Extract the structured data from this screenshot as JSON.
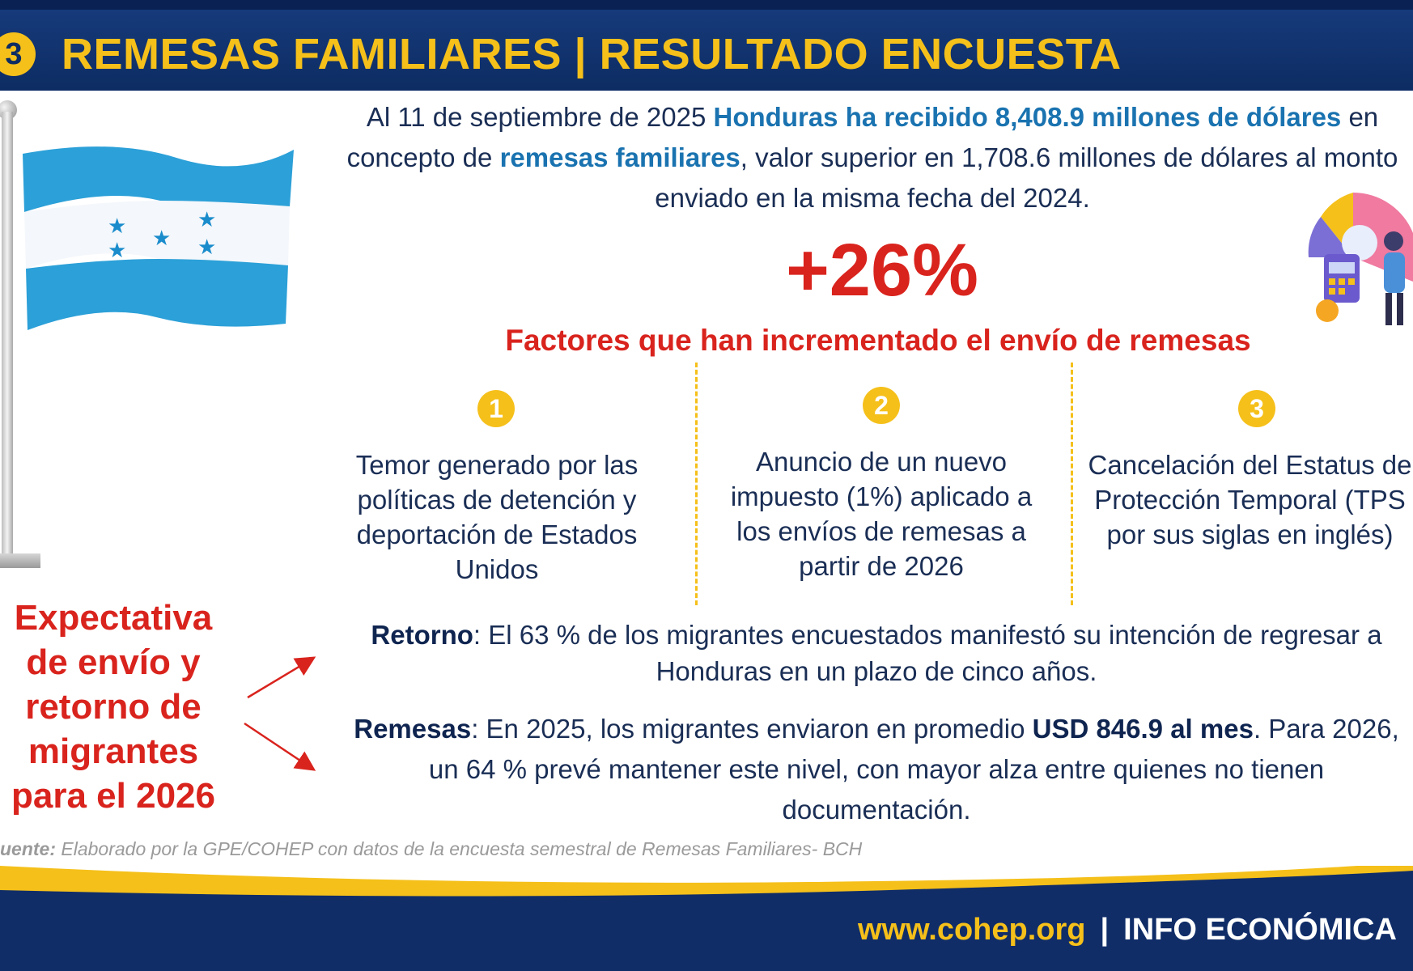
{
  "header": {
    "badge": "3",
    "title": "REMESAS FAMILIARES | RESULTADO ENCUESTA"
  },
  "intro": {
    "t1": "Al 11 de septiembre de 2025 ",
    "t2": "Honduras ha recibido 8,408.9 millones de dólares",
    "t3": " en concepto de ",
    "t4": "remesas familiares",
    "t5": ", valor superior en 1,708.6 millones de dólares al monto enviado en la misma fecha del 2024."
  },
  "growth": "+26%",
  "factors": {
    "title": "Factores que han incrementado el envío de remesas",
    "items": [
      {
        "num": "1",
        "text": "Temor generado por las políticas de detención y deportación de Estados Unidos"
      },
      {
        "num": "2",
        "text": "Anuncio de un nuevo impuesto (1%) aplicado a los envíos de remesas a partir de 2026"
      },
      {
        "num": "3",
        "text": "Cancelación del Estatus de Protección Temporal (TPS por sus siglas en inglés)"
      }
    ]
  },
  "expectation": "Expectativa de envío y retorno de migrantes para el 2026",
  "retorno": {
    "label": "Retorno",
    "text": ": El 63 % de los migrantes encuestados manifestó su intención de regresar a Honduras en un plazo de cinco años."
  },
  "remesas": {
    "label": "Remesas",
    "t1": ": En 2025, los migrantes enviaron en promedio ",
    "bold": "USD 846.9 al mes",
    "t2": ". Para 2026, un 64 % prevé mantener este nivel, con mayor alza entre quienes no tienen documentación."
  },
  "source": {
    "label": "uente:",
    "text": " Elaborado por la GPE/COHEP con datos de la encuesta semestral de Remesas Familiares- BCH"
  },
  "footer": {
    "url": "www.cohep.org",
    "sep": "|",
    "info": "INFO ECONÓMICA"
  },
  "colors": {
    "navy": "#0d2c63",
    "gold": "#f5c01a",
    "red": "#d9231d",
    "blue_highlight": "#1a73b0",
    "flag_blue": "#2ca0d8"
  },
  "icons": [
    "honduras-flag",
    "finance-illustration",
    "arrow-up-right",
    "arrow-down-right"
  ]
}
